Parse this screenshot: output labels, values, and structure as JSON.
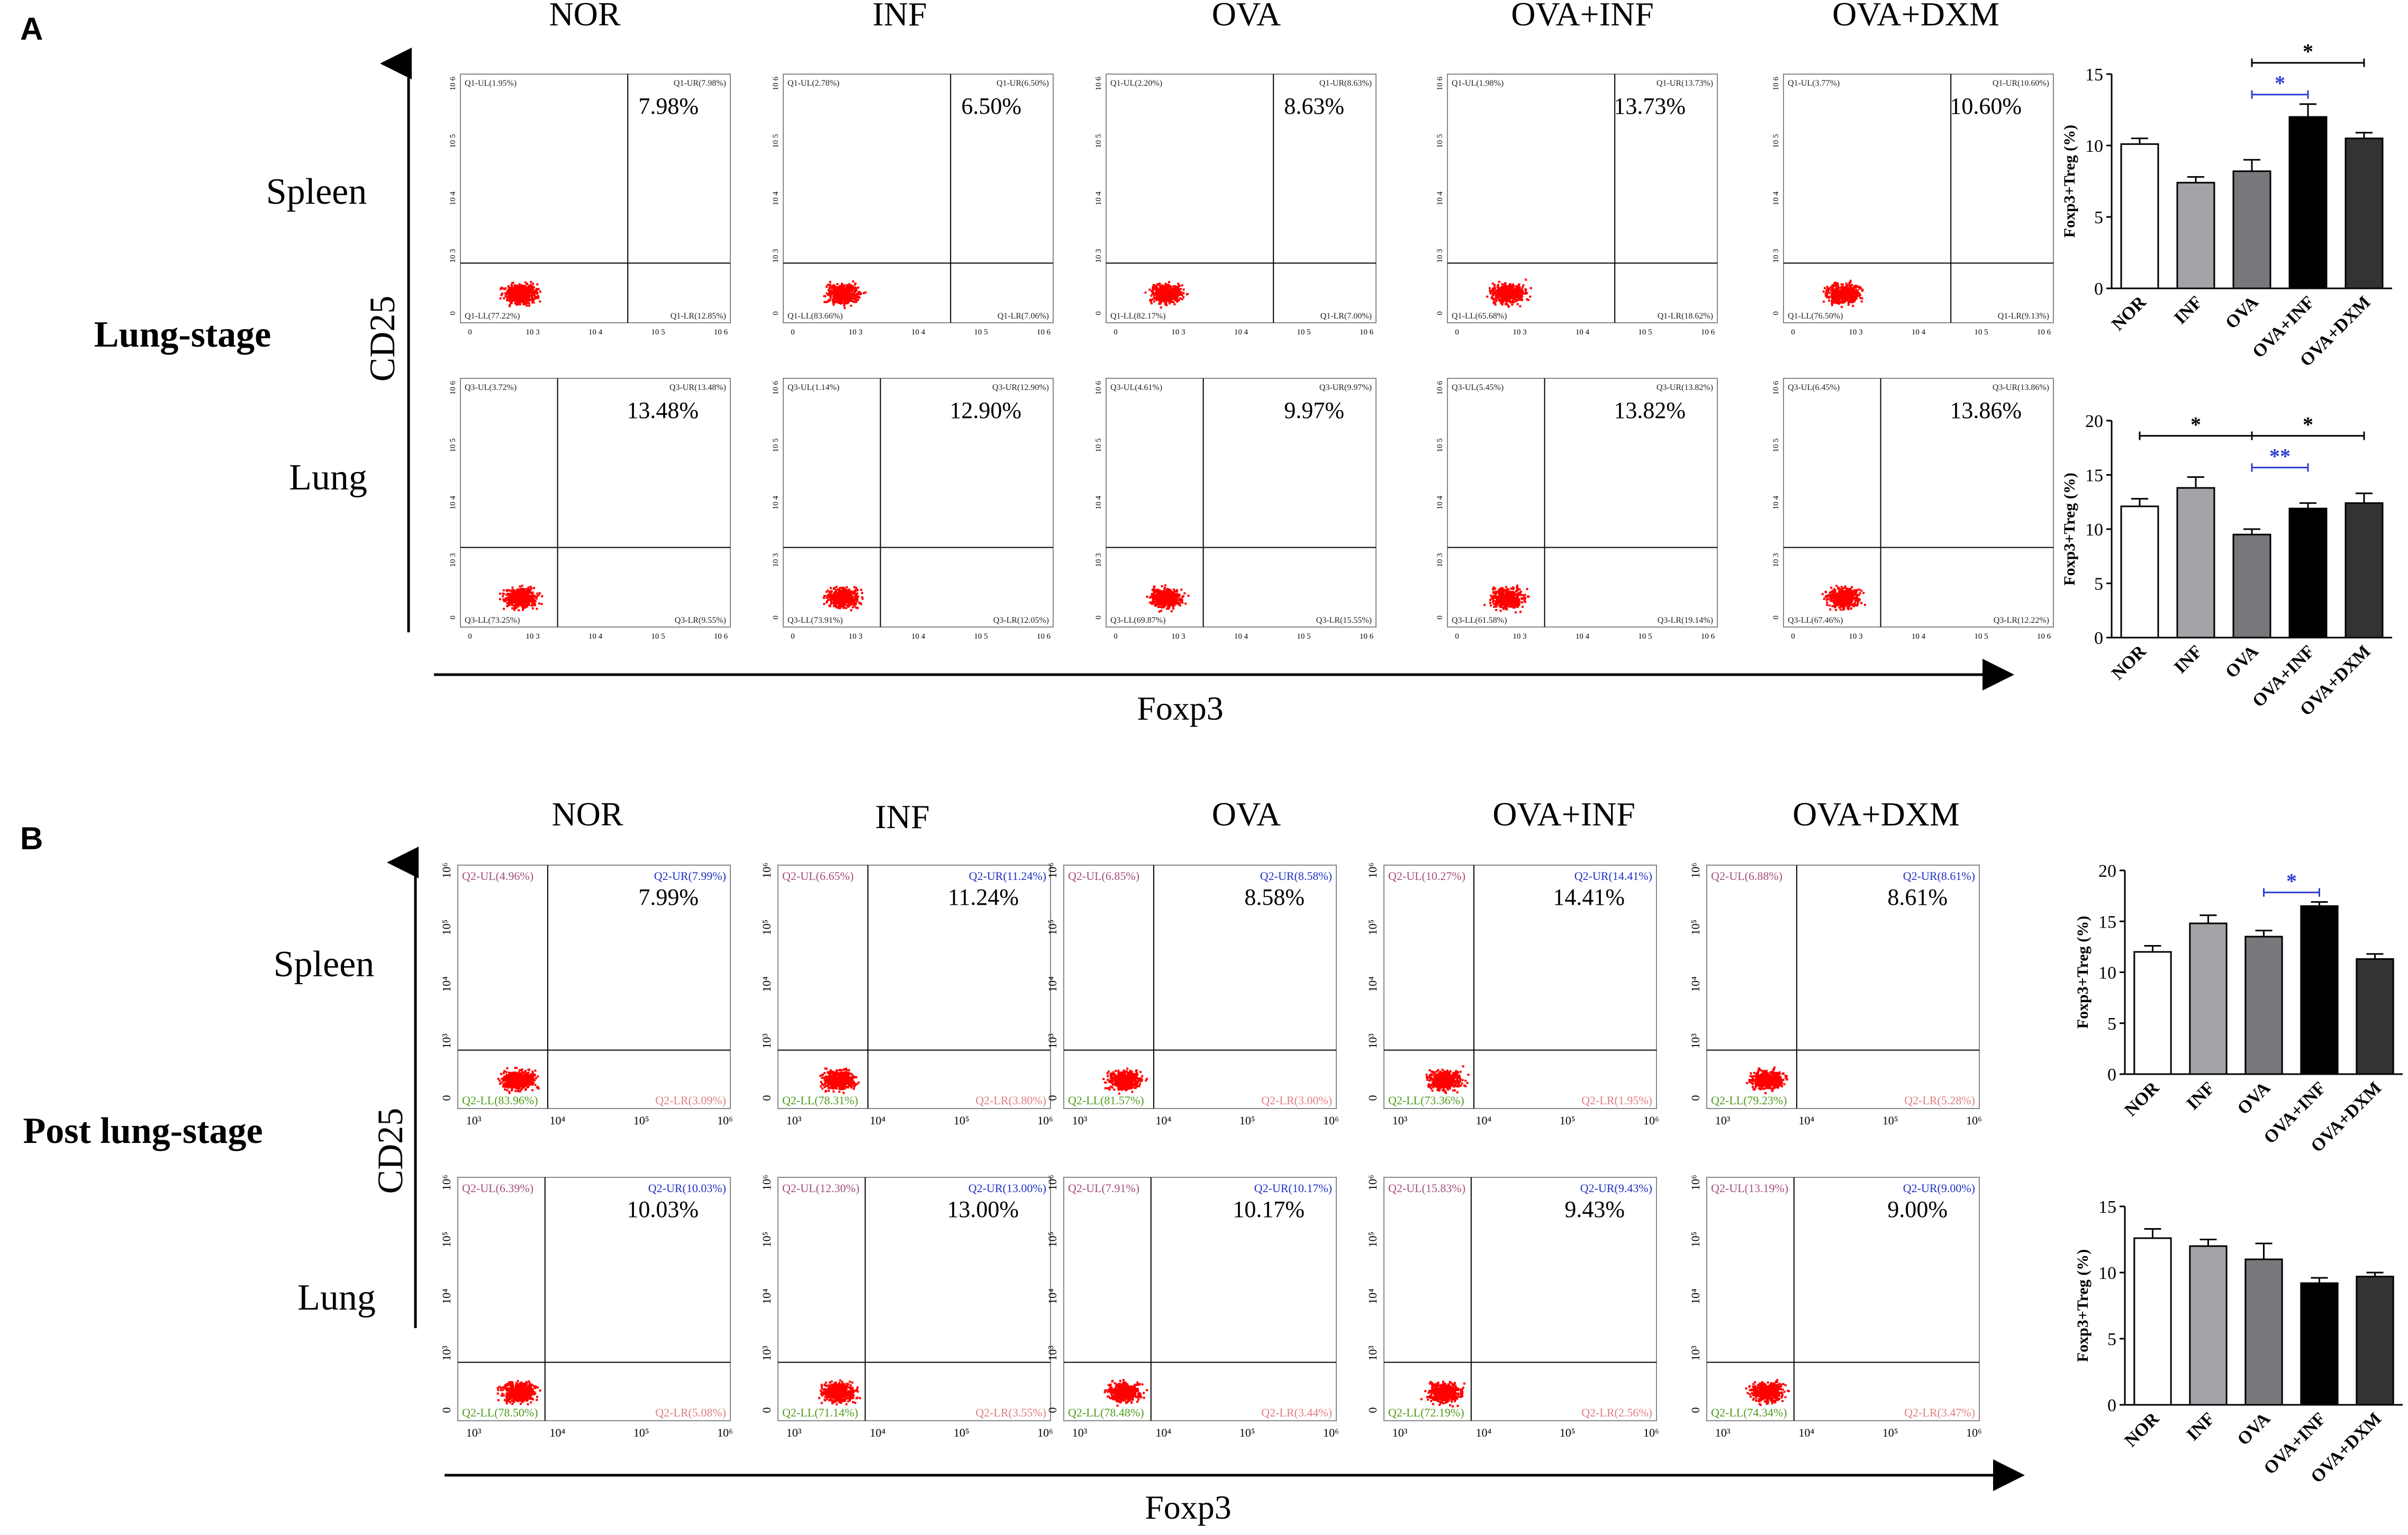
{
  "panel_a": {
    "letter": "A",
    "stage_label": "Lung-stage",
    "y_axis_label": "CD25",
    "x_axis_label": "Foxp3",
    "groups": [
      "NOR",
      "INF",
      "OVA",
      "OVA+INF",
      "OVA+DXM"
    ],
    "rows": [
      {
        "label": "Spleen",
        "plots": [
          {
            "ul": "Q1-UL(1.95%)",
            "ur": "Q1-UR(7.98%)",
            "ll": "Q1-LL(77.22%)",
            "lr": "Q1-LR(12.85%)",
            "big": "7.98%"
          },
          {
            "ul": "Q1-UL(2.78%)",
            "ur": "Q1-UR(6.50%)",
            "ll": "Q1-LL(83.66%)",
            "lr": "Q1-LR(7.06%)",
            "big": "6.50%"
          },
          {
            "ul": "Q1-UL(2.20%)",
            "ur": "Q1-UR(8.63%)",
            "ll": "Q1-LL(82.17%)",
            "lr": "Q1-LR(7.00%)",
            "big": "8.63%"
          },
          {
            "ul": "Q1-UL(1.98%)",
            "ur": "Q1-UR(13.73%)",
            "ll": "Q1-LL(65.68%)",
            "lr": "Q1-LR(18.62%)",
            "big": "13.73%"
          },
          {
            "ul": "Q1-UL(3.77%)",
            "ur": "Q1-UR(10.60%)",
            "ll": "Q1-LL(76.50%)",
            "lr": "Q1-LR(9.13%)",
            "big": "10.60%"
          }
        ]
      },
      {
        "label": "Lung",
        "plots": [
          {
            "ul": "Q3-UL(3.72%)",
            "ur": "Q3-UR(13.48%)",
            "ll": "Q3-LL(73.25%)",
            "lr": "Q3-LR(9.55%)",
            "big": "13.48%"
          },
          {
            "ul": "Q3-UL(1.14%)",
            "ur": "Q3-UR(12.90%)",
            "ll": "Q3-LL(73.91%)",
            "lr": "Q3-LR(12.05%)",
            "big": "12.90%"
          },
          {
            "ul": "Q3-UL(4.61%)",
            "ur": "Q3-UR(9.97%)",
            "ll": "Q3-LL(69.87%)",
            "lr": "Q3-LR(15.55%)",
            "big": "9.97%"
          },
          {
            "ul": "Q3-UL(5.45%)",
            "ur": "Q3-UR(13.82%)",
            "ll": "Q3-LL(61.58%)",
            "lr": "Q3-LR(19.14%)",
            "big": "13.82%"
          },
          {
            "ul": "Q3-UL(6.45%)",
            "ur": "Q3-UR(13.86%)",
            "ll": "Q3-LL(67.46%)",
            "lr": "Q3-LR(12.22%)",
            "big": "13.86%"
          }
        ]
      }
    ]
  },
  "panel_b": {
    "letter": "B",
    "stage_label": "Post lung-stage",
    "y_axis_label": "CD25",
    "x_axis_label": "Foxp3",
    "groups": [
      "NOR",
      "INF",
      "OVA",
      "OVA+INF",
      "OVA+DXM"
    ],
    "rows": [
      {
        "label": "Spleen",
        "plots": [
          {
            "ul": "Q2-UL(4.96%)",
            "ur": "Q2-UR(7.99%)",
            "ll": "Q2-LL(83.96%)",
            "lr": "Q2-LR(3.09%)",
            "big": "7.99%"
          },
          {
            "ul": "Q2-UL(6.65%)",
            "ur": "Q2-UR(11.24%)",
            "ll": "Q2-LL(78.31%)",
            "lr": "Q2-LR(3.80%)",
            "big": "11.24%"
          },
          {
            "ul": "Q2-UL(6.85%)",
            "ur": "Q2-UR(8.58%)",
            "ll": "Q2-LL(81.57%)",
            "lr": "Q2-LR(3.00%)",
            "big": "8.58%"
          },
          {
            "ul": "Q2-UL(10.27%)",
            "ur": "Q2-UR(14.41%)",
            "ll": "Q2-LL(73.36%)",
            "lr": "Q2-LR(1.95%)",
            "big": "14.41%"
          },
          {
            "ul": "Q2-UL(6.88%)",
            "ur": "Q2-UR(8.61%)",
            "ll": "Q2-LL(79.23%)",
            "lr": "Q2-LR(5.28%)",
            "big": "8.61%"
          }
        ]
      },
      {
        "label": "Lung",
        "plots": [
          {
            "ul": "Q2-UL(6.39%)",
            "ur": "Q2-UR(10.03%)",
            "ll": "Q2-LL(78.50%)",
            "lr": "Q2-LR(5.08%)",
            "big": "10.03%"
          },
          {
            "ul": "Q2-UL(12.30%)",
            "ur": "Q2-UR(13.00%)",
            "ll": "Q2-LL(71.14%)",
            "lr": "Q2-LR(3.55%)",
            "big": "13.00%"
          },
          {
            "ul": "Q2-UL(7.91%)",
            "ur": "Q2-UR(10.17%)",
            "ll": "Q2-LL(78.48%)",
            "lr": "Q2-LR(3.44%)",
            "big": "10.17%"
          },
          {
            "ul": "Q2-UL(15.83%)",
            "ur": "Q2-UR(9.43%)",
            "ll": "Q2-LL(72.19%)",
            "lr": "Q2-LR(2.56%)",
            "big": "9.43%"
          },
          {
            "ul": "Q2-UL(13.19%)",
            "ur": "Q2-UR(9.00%)",
            "ll": "Q2-LL(74.34%)",
            "lr": "Q2-LR(3.47%)",
            "big": "9.00%"
          }
        ]
      }
    ]
  },
  "flow_ticks": {
    "a": [
      "0",
      "10 3",
      "10 4",
      "10 5",
      "10 6"
    ],
    "b_x": [
      "10³",
      "10⁴",
      "10⁵",
      "10⁶"
    ],
    "b_y": [
      "0",
      "10³",
      "10⁴",
      "10⁵",
      "10⁶"
    ]
  },
  "colors": {
    "dots": "#ff0000",
    "nor_bar": "#ffffff",
    "inf_bar": "#a3a3a8",
    "ova_bar": "#77777c",
    "ova_inf_bar": "#000000",
    "ova_dxm_bar": "#333333",
    "sig_blue": "#2e3fd0",
    "label_blue": "#1f2fc0",
    "label_pink": "#a44d7a",
    "label_green": "#4d9a1a",
    "label_red": "#d32f2f",
    "label_salmon": "#e07d7d"
  },
  "chart_data": [
    {
      "type": "bar",
      "panel": "A",
      "tissue": "Spleen",
      "ylabel": "Foxp3+Treg (%)",
      "categories": [
        "NOR",
        "INF",
        "OVA",
        "OVA+INF",
        "OVA+DXM"
      ],
      "values": [
        10.1,
        7.4,
        8.2,
        12.0,
        10.5
      ],
      "errors": [
        0.4,
        0.4,
        0.8,
        0.9,
        0.4
      ],
      "ylim": [
        0,
        15
      ],
      "yticks": [
        "0",
        "5",
        "10",
        "15"
      ],
      "significance": [
        {
          "from": 2,
          "to": 4,
          "label": "*",
          "level": 2,
          "color": "black"
        },
        {
          "from": 2,
          "to": 3,
          "label": "*",
          "level": 1,
          "color": "blue"
        }
      ]
    },
    {
      "type": "bar",
      "panel": "A",
      "tissue": "Lung",
      "ylabel": "Foxp3+Treg (%)",
      "categories": [
        "NOR",
        "INF",
        "OVA",
        "OVA+INF",
        "OVA+DXM"
      ],
      "values": [
        12.1,
        13.8,
        9.5,
        11.9,
        12.4
      ],
      "errors": [
        0.7,
        1.0,
        0.5,
        0.5,
        0.9
      ],
      "ylim": [
        0,
        20
      ],
      "yticks": [
        "0",
        "5",
        "10",
        "15",
        "20"
      ],
      "significance": [
        {
          "from": 0,
          "to": 2,
          "label": "*",
          "level": 2,
          "color": "black"
        },
        {
          "from": 2,
          "to": 4,
          "label": "*",
          "level": 2,
          "color": "black"
        },
        {
          "from": 2,
          "to": 3,
          "label": "**",
          "level": 1,
          "color": "blue"
        }
      ]
    },
    {
      "type": "bar",
      "panel": "B",
      "tissue": "Spleen",
      "ylabel": "Foxp3+Treg (%)",
      "categories": [
        "NOR",
        "INF",
        "OVA",
        "OVA+INF",
        "OVA+DXM"
      ],
      "values": [
        12.0,
        14.8,
        13.5,
        16.5,
        11.3
      ],
      "errors": [
        0.6,
        0.8,
        0.6,
        0.4,
        0.5
      ],
      "ylim": [
        0,
        20
      ],
      "yticks": [
        "0",
        "5",
        "10",
        "15",
        "20"
      ],
      "significance": [
        {
          "from": 2,
          "to": 3,
          "label": "*",
          "level": 1,
          "color": "blue"
        }
      ]
    },
    {
      "type": "bar",
      "panel": "B",
      "tissue": "Lung",
      "ylabel": "Foxp3+Treg (%)",
      "categories": [
        "NOR",
        "INF",
        "OVA",
        "OVA+INF",
        "OVA+DXM"
      ],
      "values": [
        12.6,
        12.0,
        11.0,
        9.2,
        9.7
      ],
      "errors": [
        0.7,
        0.5,
        1.2,
        0.4,
        0.3
      ],
      "ylim": [
        0,
        15
      ],
      "yticks": [
        "0",
        "5",
        "10",
        "15"
      ],
      "significance": []
    }
  ]
}
